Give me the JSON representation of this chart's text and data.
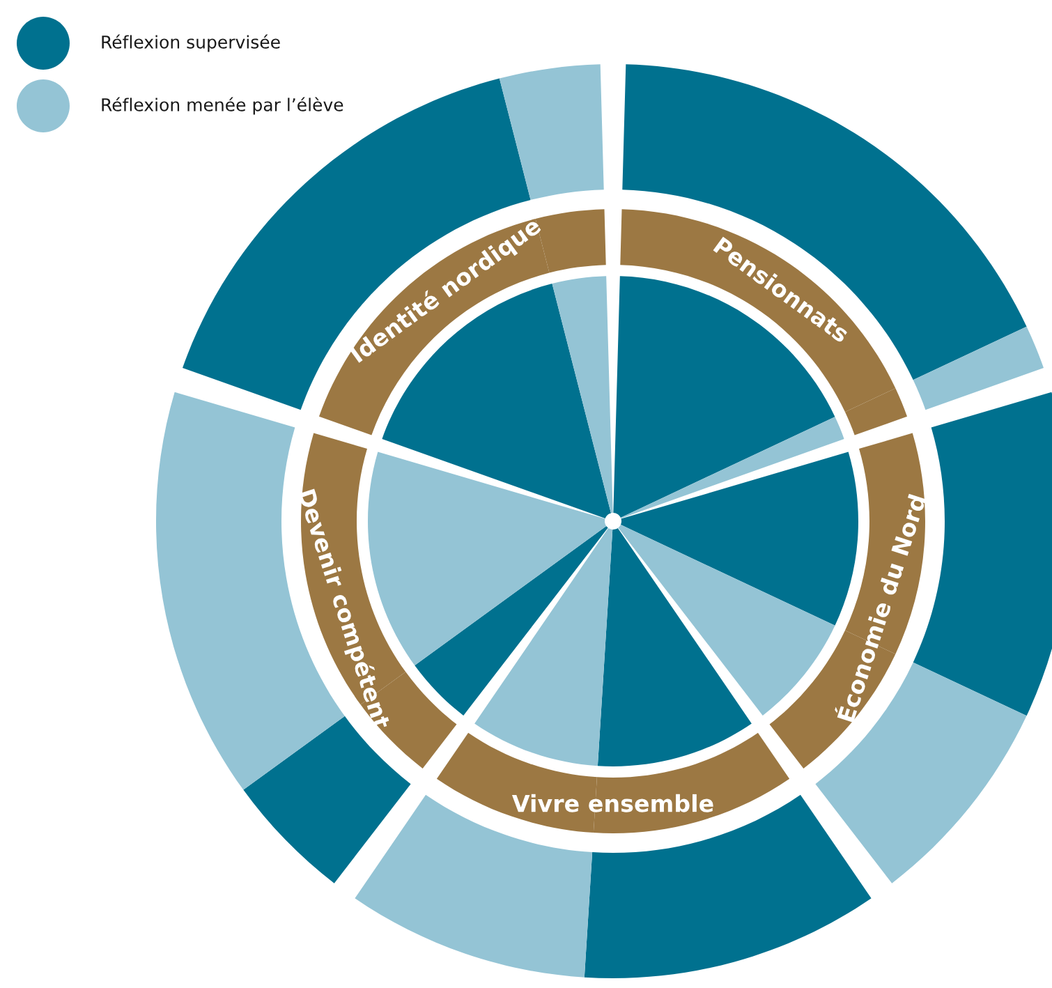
{
  "chart_data": {
    "type": "donut",
    "categories": [
      null,
      null,
      null,
      null,
      null,
      null,
      null,
      null,
      null,
      null
    ],
    "series": [
      {
        "values": [
          18,
          2,
          12,
          8,
          11,
          9,
          5,
          15,
          16,
          4
        ],
        "colors": [
          "#9c7843",
          "#9c7843",
          "#9c7843",
          "#9c7843",
          "#9c7843",
          "#9c7843",
          "#9c7843",
          "#9c7843",
          "#9c7843",
          "#9c7843"
        ]
      },
      {
        "values": [
          18,
          2,
          12,
          8,
          11,
          9,
          5,
          15,
          16,
          4
        ],
        "colors": [
          "#00718f",
          "#94c4d5",
          "#00718f",
          "#94c4d5",
          "#00718f",
          "#94c4d5",
          "#00718f",
          "#94c4d5",
          "#00718f",
          "#94c4d5"
        ]
      },
      {
        "values": [
          18,
          2,
          12,
          8,
          11,
          9,
          5,
          15,
          16,
          4
        ],
        "colors": [
          "#00718f",
          "#94c4d5",
          "#00718f",
          "#94c4d5",
          "#00718f",
          "#94c4d5",
          "#00718f",
          "#94c4d5",
          "#00718f",
          "#94c4d5"
        ]
      }
    ],
    "annotations": [
      "Réflexion supervisée",
      "Réflexion menée par l’élève",
      "Pensionnats",
      "Économie du Nord",
      "Vivre ensemble",
      "Devenir compétent",
      "Identité nordique"
    ]
  }
}
